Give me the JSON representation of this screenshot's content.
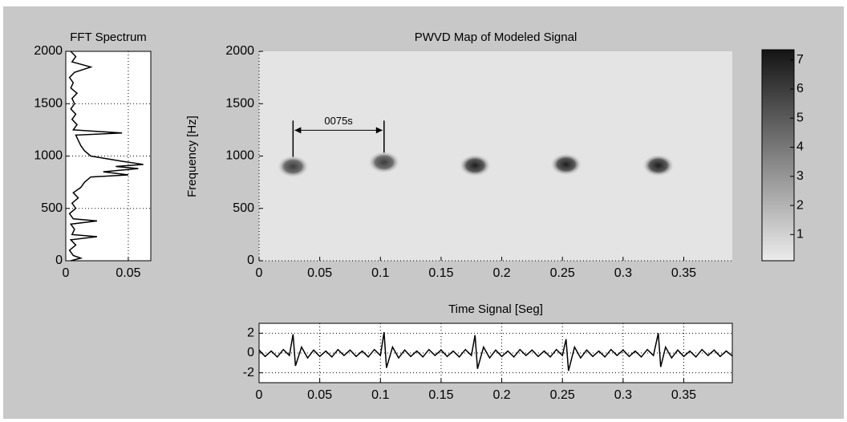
{
  "chart_data": [
    {
      "type": "line",
      "orientation": "horizontal",
      "title": "FFT Spectrum",
      "x": [
        0,
        25,
        50,
        100,
        150,
        200,
        230,
        250,
        300,
        350,
        380,
        400,
        450,
        500,
        550,
        600,
        650,
        700,
        750,
        800,
        820,
        850,
        880,
        900,
        920,
        950,
        980,
        1000,
        1050,
        1100,
        1150,
        1200,
        1220,
        1250,
        1300,
        1350,
        1400,
        1450,
        1500,
        1550,
        1600,
        1650,
        1700,
        1750,
        1800,
        1850,
        1900,
        1950,
        2000
      ],
      "values": [
        0.004,
        0.012,
        0.006,
        0.003,
        0.008,
        0.004,
        0.025,
        0.005,
        0.007,
        0.004,
        0.025,
        0.006,
        0.003,
        0.008,
        0.005,
        0.01,
        0.006,
        0.012,
        0.015,
        0.02,
        0.05,
        0.03,
        0.058,
        0.04,
        0.062,
        0.045,
        0.03,
        0.02,
        0.015,
        0.012,
        0.01,
        0.008,
        0.045,
        0.006,
        0.009,
        0.005,
        0.008,
        0.004,
        0.007,
        0.005,
        0.009,
        0.004,
        0.006,
        0.003,
        0.007,
        0.02,
        0.005,
        0.008,
        0.004
      ],
      "color": "#000000",
      "xlim": [
        0,
        2000
      ],
      "xticks": [
        0,
        500,
        1000,
        1500,
        2000
      ],
      "ylim": [
        0,
        0.068
      ],
      "yticks": [
        0,
        0.05
      ],
      "grid": true
    },
    {
      "type": "heatmap",
      "title": "PWVD Map of Modeled Signal",
      "y_label": "Frequency [Hz]",
      "x": [
        0.028,
        0.103,
        0.178,
        0.253,
        0.329
      ],
      "y": [
        900,
        940,
        910,
        920,
        910
      ],
      "values": [
        6,
        6,
        7,
        7,
        7
      ],
      "annotation": "0075s",
      "xlim": [
        0,
        0.39
      ],
      "xticks": [
        0,
        0.05,
        0.1,
        0.15,
        0.2,
        0.25,
        0.3,
        0.35
      ],
      "ylim": [
        0,
        2000
      ],
      "yticks": [
        0,
        500,
        1000,
        1500,
        2000
      ],
      "clim": [
        0.1,
        7.35
      ],
      "cticks": [
        1,
        2,
        3,
        4,
        5,
        6,
        7
      ]
    },
    {
      "type": "line",
      "title": "Time Signal [Seg]",
      "x": [
        0,
        0.005,
        0.01,
        0.015,
        0.02,
        0.025,
        0.028,
        0.03,
        0.035,
        0.04,
        0.045,
        0.05,
        0.055,
        0.06,
        0.065,
        0.07,
        0.075,
        0.08,
        0.085,
        0.09,
        0.095,
        0.1,
        0.103,
        0.105,
        0.11,
        0.115,
        0.12,
        0.125,
        0.13,
        0.135,
        0.14,
        0.145,
        0.15,
        0.155,
        0.16,
        0.165,
        0.17,
        0.175,
        0.178,
        0.18,
        0.185,
        0.19,
        0.195,
        0.2,
        0.205,
        0.21,
        0.215,
        0.22,
        0.225,
        0.23,
        0.235,
        0.24,
        0.245,
        0.25,
        0.253,
        0.255,
        0.26,
        0.265,
        0.27,
        0.275,
        0.28,
        0.285,
        0.29,
        0.295,
        0.3,
        0.305,
        0.31,
        0.315,
        0.32,
        0.325,
        0.329,
        0.331,
        0.335,
        0.34,
        0.345,
        0.35,
        0.355,
        0.36,
        0.365,
        0.37,
        0.375,
        0.38,
        0.385,
        0.39
      ],
      "values": [
        0.3,
        -0.35,
        0.2,
        -0.4,
        0.35,
        -0.25,
        1.9,
        -1.3,
        0.6,
        -0.5,
        0.3,
        -0.35,
        0.2,
        -0.4,
        0.35,
        -0.25,
        0.3,
        -0.35,
        0.2,
        -0.4,
        0.35,
        -0.25,
        2.1,
        -1.5,
        0.6,
        -0.5,
        0.3,
        -0.35,
        0.2,
        -0.4,
        0.35,
        -0.25,
        0.3,
        -0.35,
        0.2,
        -0.4,
        0.35,
        -0.25,
        1.8,
        -1.6,
        0.6,
        -0.5,
        0.3,
        -0.35,
        0.2,
        -0.4,
        0.35,
        -0.25,
        0.3,
        -0.35,
        0.2,
        -0.4,
        0.35,
        -0.25,
        1.4,
        -1.8,
        0.6,
        -0.5,
        0.3,
        -0.35,
        0.2,
        -0.4,
        0.35,
        -0.25,
        0.3,
        -0.35,
        0.2,
        -0.4,
        0.35,
        -0.25,
        2.0,
        -1.4,
        0.6,
        -0.5,
        0.3,
        -0.35,
        0.2,
        -0.4,
        0.35,
        -0.25,
        0.3,
        -0.35,
        0.2,
        -0.3
      ],
      "color": "#000000",
      "xlim": [
        0,
        0.39
      ],
      "xticks": [
        0,
        0.05,
        0.1,
        0.15,
        0.2,
        0.25,
        0.3,
        0.35
      ],
      "ylim": [
        -3,
        3
      ],
      "yticks": [
        -2,
        0,
        2
      ],
      "grid": true
    }
  ]
}
